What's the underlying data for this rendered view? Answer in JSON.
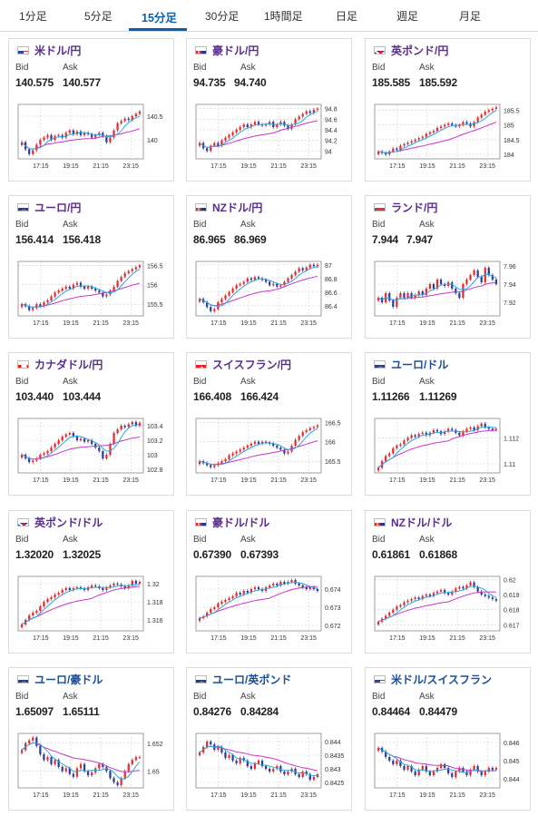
{
  "tabs": [
    {
      "label": "1分足",
      "active": false
    },
    {
      "label": "5分足",
      "active": false
    },
    {
      "label": "15分足",
      "active": true
    },
    {
      "label": "30分足",
      "active": false
    },
    {
      "label": "1時間足",
      "active": false
    },
    {
      "label": "日足",
      "active": false
    },
    {
      "label": "週足",
      "active": false
    },
    {
      "label": "月足",
      "active": false
    }
  ],
  "labels": {
    "bid": "Bid",
    "ask": "Ask"
  },
  "colors": {
    "accent": "#0a5fa8",
    "title_purple": "#5a2d8c",
    "title_blue": "#1c4f96",
    "up": "#e52b2b",
    "down": "#2a3e9a",
    "ma_short": "#29a8e0",
    "ma_long": "#cc33cc",
    "grid": "#cfcfcf"
  },
  "x_labels": [
    "17:15",
    "19:15",
    "21:15",
    "23:15"
  ],
  "cards": [
    {
      "title": "米ドル/円",
      "flag": "us-flag-icon",
      "bid": "140.575",
      "ask": "140.577",
      "title_color": "purple",
      "chart_data": {
        "type": "candlestick",
        "y_ticks": [
          "140.5",
          "140"
        ],
        "y_tick_values": [
          140.5,
          140.0
        ],
        "ylim": [
          139.6,
          140.75
        ],
        "close": [
          139.95,
          139.8,
          139.7,
          139.78,
          139.9,
          140.0,
          140.05,
          140.1,
          140.0,
          140.08,
          140.1,
          140.05,
          140.15,
          140.2,
          140.12,
          140.18,
          140.1,
          140.15,
          140.12,
          140.05,
          140.1,
          140.15,
          140.08,
          139.95,
          140.05,
          140.2,
          140.35,
          140.4,
          140.45,
          140.42,
          140.5,
          140.55,
          140.6
        ]
      }
    },
    {
      "title": "豪ドル/円",
      "flag": "au-flag-icon",
      "bid": "94.735",
      "ask": "94.740",
      "title_color": "purple",
      "chart_data": {
        "type": "candlestick",
        "y_ticks": [
          "94.8",
          "94.6",
          "94.4",
          "94.2",
          "94"
        ],
        "y_tick_values": [
          94.8,
          94.6,
          94.4,
          94.2,
          94.0
        ],
        "ylim": [
          93.85,
          94.88
        ],
        "close": [
          94.15,
          94.05,
          94.0,
          94.1,
          94.15,
          94.1,
          94.2,
          94.25,
          94.3,
          94.35,
          94.4,
          94.45,
          94.5,
          94.45,
          94.5,
          94.55,
          94.5,
          94.48,
          94.5,
          94.55,
          94.45,
          94.5,
          94.55,
          94.48,
          94.42,
          94.5,
          94.6,
          94.65,
          94.7,
          94.75,
          94.72,
          94.78,
          94.8
        ]
      }
    },
    {
      "title": "英ポンド/円",
      "flag": "uk-flag-icon",
      "bid": "185.585",
      "ask": "185.592",
      "title_color": "purple",
      "chart_data": {
        "type": "candlestick",
        "y_ticks": [
          "185.5",
          "185",
          "184.5",
          "184"
        ],
        "y_tick_values": [
          185.5,
          185.0,
          184.5,
          184.0
        ],
        "ylim": [
          183.85,
          185.7
        ],
        "close": [
          184.1,
          184.05,
          184.0,
          184.1,
          184.2,
          184.15,
          184.3,
          184.35,
          184.4,
          184.45,
          184.5,
          184.55,
          184.6,
          184.7,
          184.75,
          184.8,
          184.9,
          184.95,
          185.0,
          185.05,
          185.0,
          184.95,
          185.0,
          185.1,
          185.05,
          184.95,
          185.1,
          185.25,
          185.35,
          185.45,
          185.5,
          185.55,
          185.6
        ]
      }
    },
    {
      "title": "ユーロ/円",
      "flag": "eu-flag-icon",
      "bid": "156.414",
      "ask": "156.418",
      "title_color": "purple",
      "chart_data": {
        "type": "candlestick",
        "y_ticks": [
          "156.5",
          "156",
          "155.5"
        ],
        "y_tick_values": [
          156.5,
          156.0,
          155.5
        ],
        "ylim": [
          155.2,
          156.6
        ],
        "close": [
          155.5,
          155.45,
          155.35,
          155.4,
          155.5,
          155.45,
          155.55,
          155.6,
          155.7,
          155.8,
          155.85,
          155.9,
          155.95,
          155.9,
          156.0,
          156.05,
          155.95,
          155.9,
          155.95,
          155.9,
          155.85,
          155.8,
          155.7,
          155.75,
          155.85,
          155.95,
          156.1,
          156.2,
          156.3,
          156.35,
          156.4,
          156.45,
          156.5
        ]
      }
    },
    {
      "title": "NZドル/円",
      "flag": "nz-flag-icon",
      "bid": "86.965",
      "ask": "86.969",
      "title_color": "purple",
      "chart_data": {
        "type": "candlestick",
        "y_ticks": [
          "87",
          "86.8",
          "86.6",
          "86.4"
        ],
        "y_tick_values": [
          87.0,
          86.8,
          86.6,
          86.4
        ],
        "ylim": [
          86.25,
          87.05
        ],
        "close": [
          86.5,
          86.45,
          86.38,
          86.32,
          86.35,
          86.45,
          86.5,
          86.55,
          86.6,
          86.65,
          86.7,
          86.72,
          86.75,
          86.8,
          86.78,
          86.82,
          86.8,
          86.78,
          86.75,
          86.7,
          86.72,
          86.68,
          86.7,
          86.75,
          86.8,
          86.85,
          86.9,
          86.95,
          86.92,
          86.96,
          87.0,
          86.98,
          87.0
        ]
      }
    },
    {
      "title": "ランド/円",
      "flag": "za-flag-icon",
      "bid": "7.944",
      "ask": "7.947",
      "title_color": "purple",
      "chart_data": {
        "type": "candlestick",
        "y_ticks": [
          "7.96",
          "7.94",
          "7.92"
        ],
        "y_tick_values": [
          7.96,
          7.94,
          7.92
        ],
        "ylim": [
          7.905,
          7.965
        ],
        "close": [
          7.925,
          7.92,
          7.93,
          7.922,
          7.915,
          7.925,
          7.93,
          7.925,
          7.93,
          7.925,
          7.928,
          7.932,
          7.928,
          7.935,
          7.94,
          7.935,
          7.945,
          7.94,
          7.938,
          7.942,
          7.935,
          7.93,
          7.925,
          7.94,
          7.945,
          7.95,
          7.955,
          7.948,
          7.942,
          7.958,
          7.95,
          7.945,
          7.94
        ]
      }
    },
    {
      "title": "カナダドル/円",
      "flag": "ca-flag-icon",
      "bid": "103.440",
      "ask": "103.444",
      "title_color": "purple",
      "chart_data": {
        "type": "candlestick",
        "y_ticks": [
          "103.4",
          "103.2",
          "103",
          "102.8"
        ],
        "y_tick_values": [
          103.4,
          103.2,
          103.0,
          102.8
        ],
        "ylim": [
          102.75,
          103.5
        ],
        "close": [
          103.0,
          102.95,
          102.9,
          102.92,
          102.95,
          103.0,
          103.02,
          103.05,
          103.1,
          103.15,
          103.2,
          103.25,
          103.28,
          103.3,
          103.25,
          103.2,
          103.22,
          103.18,
          103.2,
          103.15,
          103.1,
          103.05,
          102.95,
          103.0,
          103.15,
          103.3,
          103.35,
          103.4,
          103.38,
          103.42,
          103.45,
          103.4,
          103.44
        ]
      }
    },
    {
      "title": "スイスフラン/円",
      "flag": "ch-flag-icon",
      "bid": "166.408",
      "ask": "166.424",
      "title_color": "purple",
      "chart_data": {
        "type": "candlestick",
        "y_ticks": [
          "166.5",
          "166",
          "165.5"
        ],
        "y_tick_values": [
          166.5,
          166.0,
          165.5
        ],
        "ylim": [
          165.2,
          166.6
        ],
        "close": [
          165.5,
          165.45,
          165.4,
          165.35,
          165.4,
          165.45,
          165.5,
          165.55,
          165.65,
          165.7,
          165.75,
          165.8,
          165.85,
          165.9,
          165.95,
          166.0,
          165.95,
          166.0,
          165.98,
          165.95,
          165.9,
          165.85,
          165.8,
          165.7,
          165.75,
          165.9,
          166.05,
          166.15,
          166.25,
          166.3,
          166.35,
          166.38,
          166.42
        ]
      }
    },
    {
      "title": "ユーロ/ドル",
      "flag": "eu-flag-icon",
      "bid": "1.11266",
      "ask": "1.11269",
      "title_color": "blue",
      "chart_data": {
        "type": "candlestick",
        "y_ticks": [
          "1.112",
          "1.11"
        ],
        "y_tick_values": [
          1.112,
          1.11
        ],
        "ylim": [
          1.1093,
          1.1135
        ],
        "close": [
          1.1097,
          1.1102,
          1.1106,
          1.1108,
          1.1112,
          1.1114,
          1.1115,
          1.1118,
          1.112,
          1.1122,
          1.1121,
          1.1123,
          1.1124,
          1.1122,
          1.1124,
          1.1126,
          1.1125,
          1.1123,
          1.1125,
          1.1127,
          1.1126,
          1.1124,
          1.1122,
          1.1125,
          1.1127,
          1.1128,
          1.1126,
          1.1129,
          1.1131,
          1.1128,
          1.1127,
          1.1126,
          1.1127
        ]
      }
    },
    {
      "title": "英ポンド/ドル",
      "flag": "uk-flag-icon",
      "bid": "1.32020",
      "ask": "1.32025",
      "title_color": "purple",
      "chart_data": {
        "type": "candlestick",
        "y_ticks": [
          "1.32",
          "1.318",
          "1.316"
        ],
        "y_tick_values": [
          1.32,
          1.318,
          1.316
        ],
        "ylim": [
          1.3148,
          1.3208
        ],
        "close": [
          1.3155,
          1.316,
          1.3165,
          1.3168,
          1.317,
          1.3175,
          1.318,
          1.3183,
          1.3185,
          1.3188,
          1.319,
          1.3193,
          1.3195,
          1.3193,
          1.3195,
          1.3196,
          1.3195,
          1.3193,
          1.3196,
          1.3198,
          1.3197,
          1.3195,
          1.3193,
          1.3196,
          1.3198,
          1.32,
          1.3199,
          1.3197,
          1.3195,
          1.3198,
          1.3203,
          1.32,
          1.3202
        ]
      }
    },
    {
      "title": "豪ドル/ドル",
      "flag": "au-flag-icon",
      "bid": "0.67390",
      "ask": "0.67393",
      "title_color": "purple",
      "chart_data": {
        "type": "candlestick",
        "y_ticks": [
          "0.674",
          "0.673",
          "0.672"
        ],
        "y_tick_values": [
          0.674,
          0.673,
          0.672
        ],
        "ylim": [
          0.6717,
          0.6747
        ],
        "close": [
          0.6724,
          0.6725,
          0.6727,
          0.6729,
          0.673,
          0.6732,
          0.6733,
          0.6734,
          0.6735,
          0.6736,
          0.6738,
          0.6737,
          0.6739,
          0.6738,
          0.674,
          0.6741,
          0.674,
          0.6739,
          0.6741,
          0.6742,
          0.6743,
          0.6742,
          0.6744,
          0.6743,
          0.6744,
          0.6745,
          0.6743,
          0.6742,
          0.6741,
          0.674,
          0.6741,
          0.674,
          0.6739
        ]
      }
    },
    {
      "title": "NZドル/ドル",
      "flag": "nz-flag-icon",
      "bid": "0.61861",
      "ask": "0.61868",
      "title_color": "purple",
      "chart_data": {
        "type": "candlestick",
        "y_ticks": [
          "0.62",
          "0.619",
          "0.618",
          "0.617"
        ],
        "y_tick_values": [
          0.62,
          0.619,
          0.618,
          0.617
        ],
        "ylim": [
          0.6166,
          0.6202
        ],
        "close": [
          0.6172,
          0.6174,
          0.6176,
          0.6178,
          0.618,
          0.6182,
          0.6183,
          0.6185,
          0.6186,
          0.6187,
          0.6188,
          0.6187,
          0.6189,
          0.619,
          0.6189,
          0.6191,
          0.6192,
          0.6193,
          0.6191,
          0.619,
          0.6192,
          0.6194,
          0.6195,
          0.6194,
          0.6196,
          0.6198,
          0.6195,
          0.6192,
          0.619,
          0.6189,
          0.6188,
          0.6187,
          0.6186
        ]
      }
    },
    {
      "title": "ユーロ/豪ドル",
      "flag": "eu-flag-icon",
      "bid": "1.65097",
      "ask": "1.65111",
      "title_color": "blue",
      "chart_data": {
        "type": "candlestick",
        "y_ticks": [
          "1.652",
          "1.65"
        ],
        "y_tick_values": [
          1.652,
          1.65
        ],
        "ylim": [
          1.6488,
          1.6527
        ],
        "close": [
          1.6515,
          1.652,
          1.6522,
          1.6524,
          1.6518,
          1.6512,
          1.6508,
          1.651,
          1.6505,
          1.6508,
          1.6503,
          1.65,
          1.6502,
          1.6498,
          1.6496,
          1.6502,
          1.6505,
          1.65,
          1.6497,
          1.6499,
          1.6502,
          1.6505,
          1.6503,
          1.65,
          1.6495,
          1.6492,
          1.649,
          1.6495,
          1.65,
          1.6505,
          1.6508,
          1.651,
          1.651
        ]
      }
    },
    {
      "title": "ユーロ/英ポンド",
      "flag": "eu-flag-icon",
      "bid": "0.84276",
      "ask": "0.84284",
      "title_color": "blue",
      "chart_data": {
        "type": "candlestick",
        "y_ticks": [
          "0.844",
          "0.8435",
          "0.843",
          "0.8425"
        ],
        "y_tick_values": [
          0.844,
          0.8435,
          0.843,
          0.8425
        ],
        "ylim": [
          0.8423,
          0.8443
        ],
        "close": [
          0.8436,
          0.8438,
          0.844,
          0.8439,
          0.8437,
          0.8438,
          0.8436,
          0.8434,
          0.8435,
          0.8433,
          0.8432,
          0.8434,
          0.8433,
          0.8431,
          0.843,
          0.8432,
          0.8433,
          0.8431,
          0.843,
          0.8429,
          0.843,
          0.8431,
          0.8429,
          0.8428,
          0.8429,
          0.843,
          0.8428,
          0.8427,
          0.8429,
          0.8428,
          0.8426,
          0.8427,
          0.8428
        ]
      }
    },
    {
      "title": "米ドル/スイスフラン",
      "flag": "us-flag-icon",
      "bid": "0.84464",
      "ask": "0.84479",
      "title_color": "blue",
      "chart_data": {
        "type": "candlestick",
        "y_ticks": [
          "0.846",
          "0.845",
          "0.844"
        ],
        "y_tick_values": [
          0.846,
          0.845,
          0.844
        ],
        "ylim": [
          0.8435,
          0.8465
        ],
        "close": [
          0.8457,
          0.8455,
          0.8452,
          0.845,
          0.8448,
          0.845,
          0.8447,
          0.8445,
          0.8447,
          0.8444,
          0.8442,
          0.8445,
          0.8447,
          0.8444,
          0.8442,
          0.8444,
          0.8446,
          0.8448,
          0.8446,
          0.8443,
          0.8441,
          0.8444,
          0.8446,
          0.8444,
          0.8442,
          0.8445,
          0.8447,
          0.8444,
          0.8442,
          0.8444,
          0.8446,
          0.8445,
          0.8446
        ]
      }
    }
  ]
}
